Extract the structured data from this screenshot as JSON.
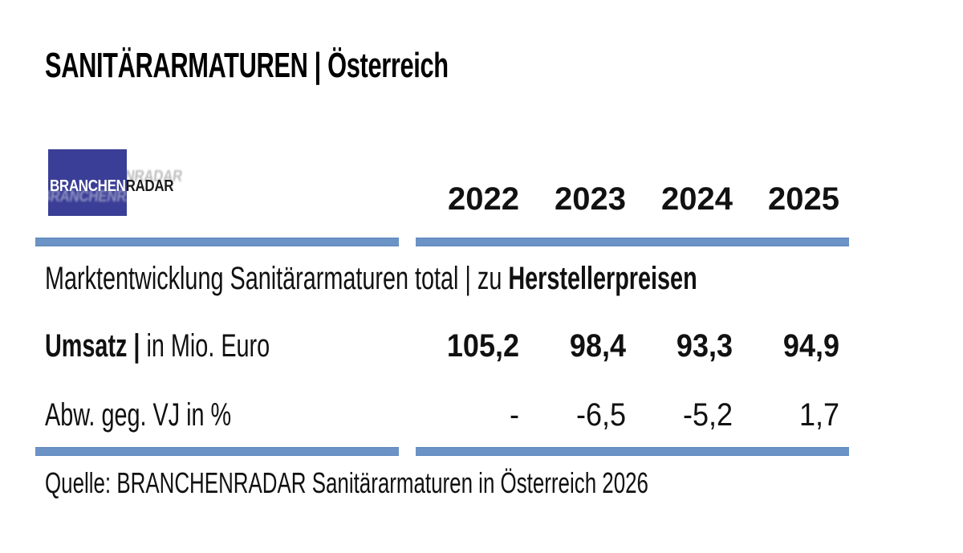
{
  "title": "SANITÄRARMATUREN | Österreich",
  "logo": {
    "part1": "BRANCHEN",
    "part2": "RADAR"
  },
  "table": {
    "years": [
      "2022",
      "2023",
      "2024",
      "2025"
    ],
    "section_title": {
      "regular": "Marktentwicklung Sanitärarmaturen total | zu ",
      "bold": "Herstellerpreisen"
    },
    "rows": [
      {
        "label_bold": "Umsatz |",
        "label_regular": " in Mio. Euro",
        "values": [
          "105,2",
          "98,4",
          "93,3",
          "94,9"
        ]
      },
      {
        "label_bold": "",
        "label_regular": "Abw. geg. VJ in %",
        "values": [
          "-",
          "-6,5",
          "-5,2",
          "1,7"
        ]
      }
    ]
  },
  "source": "Quelle: BRANCHENRADAR Sanitärarmaturen in Österreich 2026",
  "colors": {
    "rule_blue": "#6b93c6",
    "logo_blue": "#3b3e96",
    "text": "#111111"
  },
  "chart_data": {
    "type": "table",
    "title": "SANITÄRARMATUREN | Österreich",
    "subtitle": "Marktentwicklung Sanitärarmaturen total | zu Herstellerpreisen",
    "categories": [
      "2022",
      "2023",
      "2024",
      "2025"
    ],
    "series": [
      {
        "name": "Umsatz | in Mio. Euro",
        "values": [
          105.2,
          98.4,
          93.3,
          94.9
        ]
      },
      {
        "name": "Abw. geg. VJ in %",
        "values": [
          null,
          -6.5,
          -5.2,
          1.7
        ]
      }
    ],
    "source": "Quelle: BRANCHENRADAR Sanitärarmaturen in Österreich 2026"
  }
}
